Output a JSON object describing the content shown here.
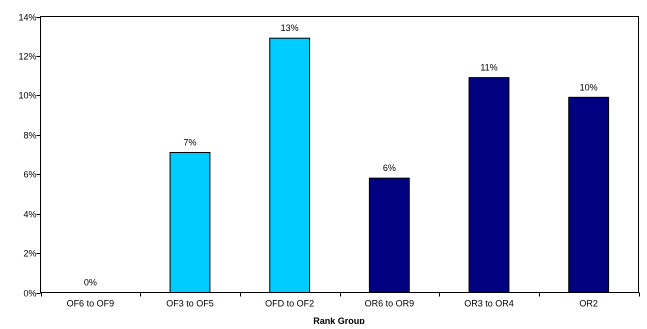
{
  "chart_data": {
    "type": "bar",
    "categories": [
      "OF6 to OF9",
      "OF3 to OF5",
      "OFD to OF2",
      "OR6 to OR9",
      "OR3 to OR4",
      "OR2"
    ],
    "values": [
      0,
      7.1,
      12.9,
      5.8,
      10.9,
      9.9
    ],
    "data_labels": [
      "0%",
      "7%",
      "13%",
      "6%",
      "11%",
      "10%"
    ],
    "bar_colors": [
      "#00ccff",
      "#00ccff",
      "#00ccff",
      "#000080",
      "#000080",
      "#000080"
    ],
    "ylim": [
      0,
      14
    ],
    "y_ticks": [
      0,
      2,
      4,
      6,
      8,
      10,
      12,
      14
    ],
    "y_tick_labels": [
      "0%",
      "2%",
      "4%",
      "6%",
      "8%",
      "10%",
      "12%",
      "14%"
    ],
    "xlabel": "Rank Group",
    "ylabel": "",
    "title": "",
    "grid": false,
    "legend": "none"
  }
}
